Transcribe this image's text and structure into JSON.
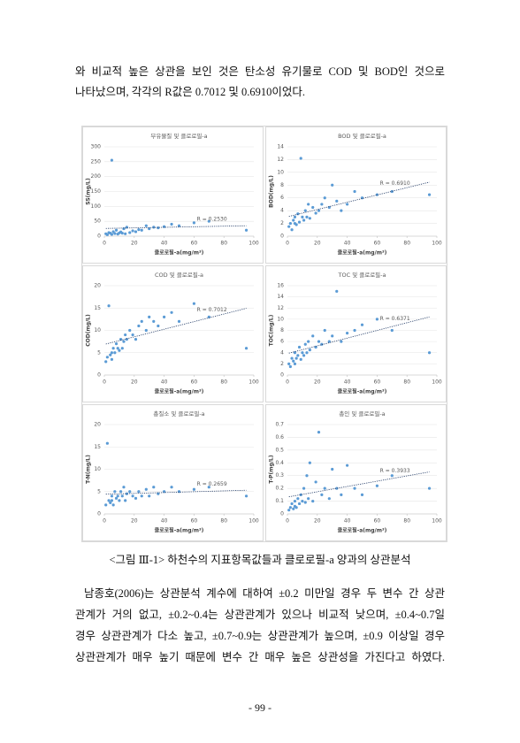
{
  "intro": [
    "와 비교적 높은 상관을 보인 것은 탄소성 유기물로 COD 및 BOD인 것으로",
    "나타났으며, 각각의 R값은 0.7012 및 0.6910이었다."
  ],
  "chart_data": [
    {
      "type": "scatter",
      "title": "부유물질 및 클로로필-a",
      "x_label": "클로로필-a(mg/m³)",
      "y_label": "SS(mg/L)",
      "color": "#5b9bd5",
      "trendline": true,
      "grid": true,
      "annotation": "R = 0.2530",
      "x": [
        1,
        2,
        3,
        4,
        5,
        5,
        6,
        7,
        8,
        9,
        10,
        11,
        12,
        13,
        14,
        15,
        17,
        19,
        21,
        23,
        25,
        28,
        30,
        33,
        36,
        40,
        45,
        50,
        60,
        70,
        95
      ],
      "y": [
        8,
        5,
        12,
        10,
        255,
        6,
        15,
        9,
        20,
        7,
        11,
        14,
        10,
        25,
        8,
        30,
        12,
        18,
        15,
        22,
        20,
        35,
        25,
        30,
        28,
        32,
        40,
        35,
        45,
        50,
        20
      ],
      "xlim": [
        0,
        100
      ],
      "xticks": [
        0,
        20,
        40,
        60,
        80,
        100
      ],
      "ylim": [
        0,
        300
      ],
      "yticks": [
        0,
        50,
        100,
        150,
        200,
        250,
        300
      ]
    },
    {
      "type": "scatter",
      "title": "BOD 및 클로로필-a",
      "x_label": "클로로필-a(mg/m³)",
      "y_label": "BOD(mg/L)",
      "color": "#5b9bd5",
      "trendline": true,
      "grid": true,
      "annotation": "R = 0.6910",
      "x": [
        1,
        2,
        3,
        4,
        5,
        5,
        6,
        7,
        8,
        9,
        10,
        11,
        12,
        13,
        14,
        15,
        17,
        19,
        21,
        23,
        25,
        28,
        30,
        33,
        36,
        40,
        45,
        50,
        60,
        70,
        95
      ],
      "y": [
        1.5,
        2,
        1,
        2.5,
        3,
        2,
        1.8,
        3.5,
        2.2,
        12.2,
        3,
        2.5,
        4,
        3,
        5,
        2.8,
        4.5,
        3.6,
        4,
        5,
        6,
        4.5,
        8,
        5.5,
        4,
        5,
        7,
        6,
        6.5,
        7,
        6.5
      ],
      "xlim": [
        0,
        100
      ],
      "xticks": [
        0,
        20,
        40,
        60,
        80,
        100
      ],
      "ylim": [
        0,
        14
      ],
      "yticks": [
        0,
        2,
        4,
        6,
        8,
        10,
        12,
        14
      ]
    },
    {
      "type": "scatter",
      "title": "COD 및 클로로필-a",
      "x_label": "클로로필-a(mg/m³)",
      "y_label": "COD(mg/L)",
      "color": "#5b9bd5",
      "trendline": true,
      "grid": true,
      "annotation": "R = 0.7012",
      "x": [
        1,
        2,
        3,
        4,
        5,
        5,
        6,
        7,
        8,
        9,
        10,
        11,
        12,
        13,
        14,
        15,
        17,
        19,
        21,
        23,
        25,
        28,
        30,
        33,
        36,
        40,
        45,
        50,
        60,
        70,
        95
      ],
      "y": [
        3,
        4,
        15.5,
        4.5,
        5,
        3.5,
        6,
        5,
        7,
        6,
        5.5,
        8,
        6,
        7.5,
        9,
        8,
        10,
        9,
        8,
        11,
        12,
        10,
        13,
        12,
        11,
        13,
        14,
        12,
        16,
        13,
        6
      ],
      "xlim": [
        0,
        100
      ],
      "xticks": [
        0,
        20,
        40,
        60,
        80,
        100
      ],
      "ylim": [
        0,
        20
      ],
      "yticks": [
        0,
        5,
        10,
        15,
        20
      ]
    },
    {
      "type": "scatter",
      "title": "TOC 및 클로로필-a",
      "x_label": "클로로필-a(mg/m³)",
      "y_label": "TOC(mg/L)",
      "color": "#5b9bd5",
      "trendline": true,
      "grid": true,
      "annotation": "R = 0.6371",
      "x": [
        1,
        2,
        3,
        4,
        5,
        5,
        6,
        7,
        8,
        9,
        10,
        11,
        12,
        13,
        14,
        15,
        17,
        19,
        21,
        23,
        25,
        28,
        30,
        33,
        36,
        40,
        45,
        50,
        60,
        70,
        95
      ],
      "y": [
        2,
        1.5,
        3,
        2.5,
        4,
        2,
        3,
        3.5,
        5,
        2.8,
        4,
        3.5,
        5.5,
        4,
        6,
        4.5,
        7,
        5,
        6,
        5.5,
        8,
        6,
        7,
        15,
        6,
        7.5,
        8,
        9,
        10,
        8,
        4
      ],
      "xlim": [
        0,
        100
      ],
      "xticks": [
        0,
        20,
        40,
        60,
        80,
        100
      ],
      "ylim": [
        0,
        16
      ],
      "yticks": [
        0,
        2,
        4,
        6,
        8,
        10,
        12,
        14,
        16
      ]
    },
    {
      "type": "scatter",
      "title": "총질소 및 클로로필-a",
      "x_label": "클로로필-a(mg/m³)",
      "y_label": "T-N(mg/L)",
      "color": "#5b9bd5",
      "trendline": true,
      "grid": true,
      "annotation": "R = 0.2659",
      "x": [
        1,
        2,
        3,
        4,
        5,
        5,
        6,
        7,
        8,
        9,
        10,
        11,
        12,
        13,
        14,
        15,
        17,
        19,
        21,
        23,
        25,
        28,
        30,
        33,
        36,
        40,
        45,
        50,
        60,
        70,
        95
      ],
      "y": [
        2,
        15.8,
        3,
        2.5,
        4,
        3,
        2,
        5,
        3.5,
        4,
        3,
        5,
        4,
        6,
        3,
        4.5,
        5,
        4,
        3.5,
        5,
        4,
        5.5,
        4,
        6,
        4.5,
        5,
        6,
        5,
        5.5,
        6,
        4
      ],
      "xlim": [
        0,
        100
      ],
      "xticks": [
        0,
        20,
        40,
        60,
        80,
        100
      ],
      "ylim": [
        0,
        20
      ],
      "yticks": [
        0,
        5,
        10,
        15,
        20
      ]
    },
    {
      "type": "scatter",
      "title": "총인 및 클로로필-a",
      "x_label": "클로로필-a(mg/m³)",
      "y_label": "T-P(mg/L)",
      "color": "#5b9bd5",
      "trendline": true,
      "grid": true,
      "annotation": "R = 0.3933",
      "x": [
        1,
        2,
        3,
        4,
        5,
        5,
        6,
        7,
        8,
        9,
        10,
        11,
        12,
        13,
        14,
        15,
        17,
        19,
        21,
        23,
        25,
        28,
        30,
        33,
        36,
        40,
        45,
        50,
        60,
        70,
        95
      ],
      "y": [
        0.03,
        0.05,
        0.08,
        0.04,
        0.1,
        0.06,
        0.05,
        0.12,
        0.08,
        0.15,
        0.1,
        0.2,
        0.09,
        0.3,
        0.12,
        0.4,
        0.1,
        0.25,
        0.64,
        0.15,
        0.2,
        0.12,
        0.35,
        0.2,
        0.15,
        0.38,
        0.2,
        0.15,
        0.22,
        0.3,
        0.2
      ],
      "xlim": [
        0,
        100
      ],
      "xticks": [
        0,
        20,
        40,
        60,
        80,
        100
      ],
      "ylim": [
        0,
        0.7
      ],
      "yticks": [
        0,
        0.1,
        0.2,
        0.3,
        0.4,
        0.5,
        0.6,
        0.7
      ]
    }
  ],
  "caption": "<그림 Ⅲ-1> 하천수의 지표항목값들과 클로로필-a 양과의 상관분석",
  "paragraph": [
    "남종호(2006)는 상관분석 계수에 대하여 ±0.2 미만일 경우 두 변수 간 상관",
    "관계가 거의 없고, ±0.2~0.4는 상관관계가 있으나 비교적 낮으며, ±0.4~0.7일",
    "경우 상관관계가 다소 높고, ±0.7~0.9는 상관관계가 높으며, ±0.9 이상일 경우",
    "상관관계가 매우 높기 때문에 변수 간 매우 높은 상관성을 가진다고 하였다."
  ],
  "page_number": "- 99 -"
}
